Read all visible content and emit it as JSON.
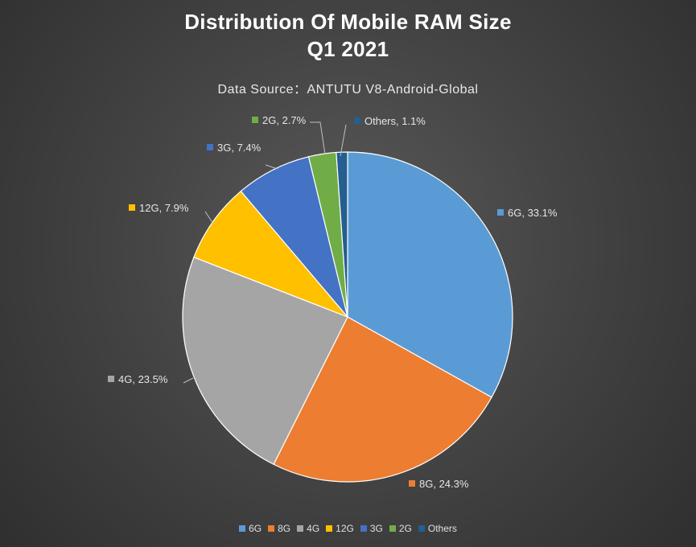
{
  "chart_data": {
    "type": "pie",
    "title_line1": "Distribution Of Mobile RAM Size",
    "title_line2": "Q1 2021",
    "subtitle": "Data Source：ANTUTU V8-Android-Global",
    "slices": [
      {
        "label": "6G",
        "value": 33.1,
        "data_label": "6G, 33.1%",
        "color": "#5b9bd5"
      },
      {
        "label": "8G",
        "value": 24.3,
        "data_label": "8G, 24.3%",
        "color": "#ed7d31"
      },
      {
        "label": "4G",
        "value": 23.5,
        "data_label": "4G, 23.5%",
        "color": "#a5a5a5"
      },
      {
        "label": "12G",
        "value": 7.9,
        "data_label": "12G, 7.9%",
        "color": "#ffc000"
      },
      {
        "label": "3G",
        "value": 7.4,
        "data_label": "3G, 7.4%",
        "color": "#4472c4"
      },
      {
        "label": "2G",
        "value": 2.7,
        "data_label": "2G, 2.7%",
        "color": "#70ad47"
      },
      {
        "label": "Others",
        "value": 1.1,
        "data_label": "Others, 1.1%",
        "color": "#255e91"
      }
    ],
    "legend_position": "bottom"
  }
}
